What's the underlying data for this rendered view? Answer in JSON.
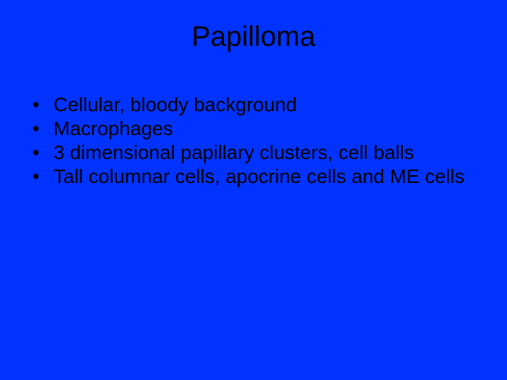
{
  "slide": {
    "background_color": "#0033ff",
    "text_color": "#000000",
    "title_fontsize": 40,
    "body_fontsize": 28,
    "font_family": "Arial",
    "title": "Papilloma",
    "bullets": [
      {
        "marker": "•",
        "text": "Cellular, bloody background"
      },
      {
        "marker": "•",
        "text": "Macrophages"
      },
      {
        "marker": "•",
        "text": "3 dimensional papillary clusters, cell balls"
      },
      {
        "marker": "•",
        "text": "Tall columnar cells, apocrine cells and ME cells"
      }
    ]
  }
}
